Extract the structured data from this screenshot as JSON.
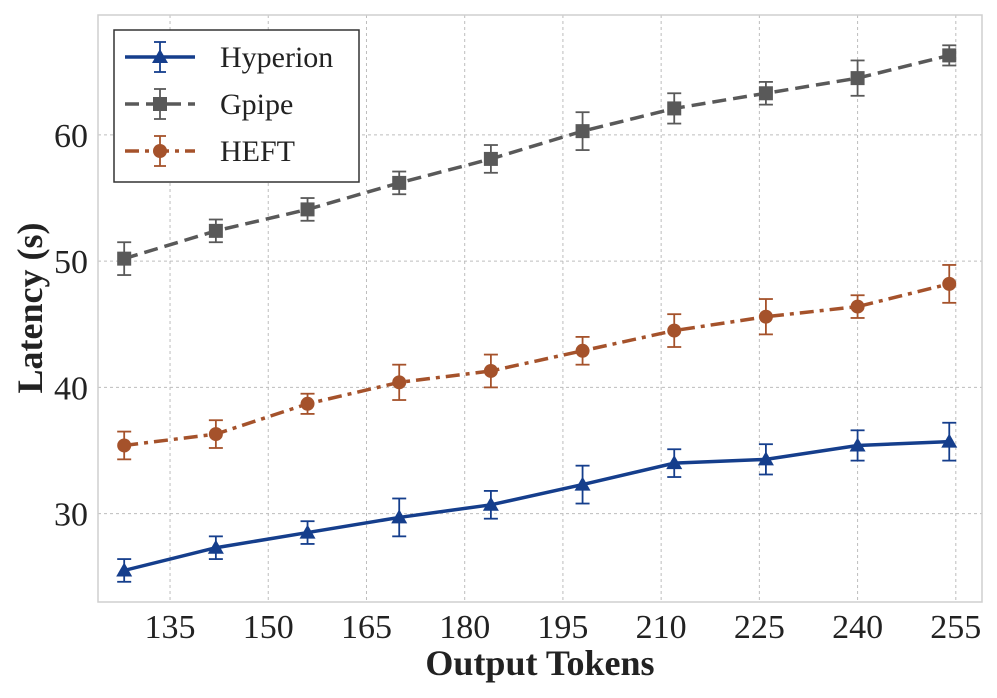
{
  "chart_data": {
    "type": "line",
    "title": "",
    "xlabel": "Output Tokens",
    "ylabel": "Latency (s)",
    "xlim": [
      124,
      259
    ],
    "ylim": [
      23,
      69.5
    ],
    "xticks": [
      135,
      150,
      165,
      180,
      195,
      210,
      225,
      240,
      255
    ],
    "xtick_labels": [
      "135",
      "150",
      "165",
      "180",
      "195",
      "210",
      "225",
      "240",
      "255"
    ],
    "yticks": [
      30,
      40,
      50,
      60
    ],
    "ytick_labels": [
      "30",
      "40",
      "50",
      "60"
    ],
    "grid": true,
    "legend_position": "top-left",
    "x": [
      128,
      142,
      156,
      170,
      184,
      198,
      212,
      226,
      240,
      254
    ],
    "series": [
      {
        "name": "Hyperion",
        "color": "#153e8c",
        "marker": "triangle",
        "linestyle": "solid",
        "values": [
          25.5,
          27.3,
          28.5,
          29.7,
          30.7,
          32.3,
          34.0,
          34.3,
          35.4,
          35.7
        ],
        "errors": [
          0.9,
          0.9,
          0.9,
          1.5,
          1.1,
          1.5,
          1.1,
          1.2,
          1.2,
          1.5
        ]
      },
      {
        "name": "Gpipe",
        "color": "#595959",
        "marker": "square",
        "linestyle": "dashed",
        "values": [
          50.2,
          52.4,
          54.1,
          56.2,
          58.1,
          60.3,
          62.1,
          63.3,
          64.5,
          66.3
        ],
        "errors": [
          1.3,
          0.9,
          0.9,
          0.9,
          1.1,
          1.5,
          1.2,
          0.9,
          1.4,
          0.8
        ]
      },
      {
        "name": "HEFT",
        "color": "#a5522b",
        "marker": "circle",
        "linestyle": "dashdot",
        "values": [
          35.4,
          36.3,
          38.7,
          40.4,
          41.3,
          42.9,
          44.5,
          45.6,
          46.4,
          48.2
        ],
        "errors": [
          1.1,
          1.1,
          0.8,
          1.4,
          1.3,
          1.1,
          1.3,
          1.4,
          0.9,
          1.5
        ]
      }
    ]
  }
}
